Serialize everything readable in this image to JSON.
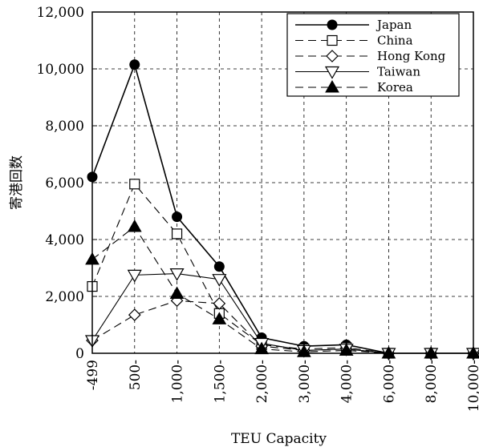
{
  "chart_data": {
    "type": "line",
    "xlabel": "TEU Capacity",
    "ylabel": "寄港回数",
    "categories": [
      "-499",
      "500-",
      "1,000-",
      "1,500-",
      "2,000-",
      "3,000-",
      "4,000-",
      "6,000-",
      "8,000-",
      "10,000-"
    ],
    "ylim": [
      0,
      12000
    ],
    "yticks": [
      "0",
      "2,000",
      "4,000",
      "6,000",
      "8,000",
      "10,000",
      "12,000"
    ],
    "ytick_values": [
      0,
      2000,
      4000,
      6000,
      8000,
      10000,
      12000
    ],
    "grid": true,
    "legend_position": "top-right",
    "series": [
      {
        "name": "Japan",
        "marker": "filled-circle",
        "line": "solid",
        "color": "#000000",
        "values": [
          6200,
          10150,
          4800,
          3050,
          550,
          250,
          300,
          0,
          0,
          0
        ]
      },
      {
        "name": "China",
        "marker": "open-square",
        "line": "dashed",
        "color": "#000000",
        "values": [
          2350,
          5950,
          4200,
          1400,
          300,
          150,
          200,
          0,
          0,
          0
        ]
      },
      {
        "name": "Hong Kong",
        "marker": "open-diamond",
        "line": "dashed",
        "color": "#000000",
        "values": [
          450,
          1350,
          1850,
          1750,
          250,
          100,
          150,
          0,
          0,
          0
        ]
      },
      {
        "name": "Taiwan",
        "marker": "open-triangle-down",
        "line": "solid-thin",
        "color": "#000000",
        "values": [
          450,
          2750,
          2800,
          2600,
          350,
          100,
          150,
          0,
          0,
          0
        ]
      },
      {
        "name": "Korea",
        "marker": "filled-triangle-up",
        "line": "dashed",
        "color": "#000000",
        "values": [
          3300,
          4450,
          2100,
          1200,
          150,
          50,
          100,
          0,
          0,
          0
        ]
      }
    ]
  }
}
